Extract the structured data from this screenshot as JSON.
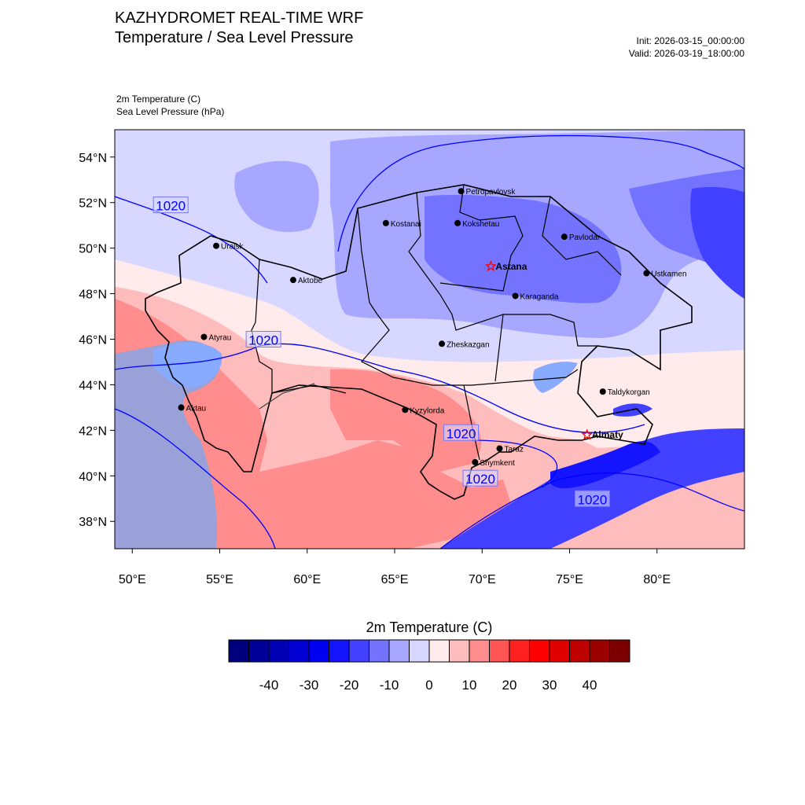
{
  "header": {
    "title": "KAZHYDROMET REAL-TIME WRF",
    "subtitle": "Temperature / Sea Level Pressure",
    "init": "Init: 2026-03-15_00:00:00",
    "valid": "Valid: 2026-03-19_18:00:00",
    "variable_1": "2m Temperature   (C)",
    "variable_2": "Sea Level Pressure   (hPa)"
  },
  "map": {
    "lon_range": [
      49,
      85
    ],
    "lat_range": [
      36.8,
      55.2
    ],
    "lat_ticks": [
      {
        "value": 54,
        "label": "54°N"
      },
      {
        "value": 52,
        "label": "52°N"
      },
      {
        "value": 50,
        "label": "50°N"
      },
      {
        "value": 48,
        "label": "48°N"
      },
      {
        "value": 46,
        "label": "46°N"
      },
      {
        "value": 44,
        "label": "44°N"
      },
      {
        "value": 42,
        "label": "42°N"
      },
      {
        "value": 40,
        "label": "40°N"
      },
      {
        "value": 38,
        "label": "38°N"
      }
    ],
    "lon_ticks": [
      {
        "value": 50,
        "label": "50°E"
      },
      {
        "value": 55,
        "label": "55°E"
      },
      {
        "value": 60,
        "label": "60°E"
      },
      {
        "value": 65,
        "label": "65°E"
      },
      {
        "value": 70,
        "label": "70°E"
      },
      {
        "value": 75,
        "label": "75°E"
      },
      {
        "value": 80,
        "label": "80°E"
      }
    ],
    "cities": [
      {
        "name": "Petropavlovsk",
        "lon": 68.8,
        "lat": 52.5,
        "marker": "dot",
        "bold": false
      },
      {
        "name": "Kostanai",
        "lon": 64.5,
        "lat": 51.1,
        "marker": "dot",
        "bold": false
      },
      {
        "name": "Kokshetau",
        "lon": 68.6,
        "lat": 51.1,
        "marker": "dot",
        "bold": false
      },
      {
        "name": "Uralsk",
        "lon": 54.8,
        "lat": 50.1,
        "marker": "dot",
        "bold": false
      },
      {
        "name": "Pavlodar",
        "lon": 74.7,
        "lat": 50.5,
        "marker": "dot",
        "bold": false
      },
      {
        "name": "Astana",
        "lon": 70.5,
        "lat": 49.2,
        "marker": "star",
        "bold": true
      },
      {
        "name": "Ustkamen",
        "lon": 79.4,
        "lat": 48.9,
        "marker": "dot",
        "bold": false
      },
      {
        "name": "Aktobe",
        "lon": 59.2,
        "lat": 48.6,
        "marker": "dot",
        "bold": false
      },
      {
        "name": "Karaganda",
        "lon": 71.9,
        "lat": 47.9,
        "marker": "dot",
        "bold": false
      },
      {
        "name": "Atyrau",
        "lon": 54.1,
        "lat": 46.1,
        "marker": "dot",
        "bold": false
      },
      {
        "name": "Zheskazgan",
        "lon": 67.7,
        "lat": 45.8,
        "marker": "dot",
        "bold": false
      },
      {
        "name": "Taldykorgan",
        "lon": 76.9,
        "lat": 43.7,
        "marker": "dot",
        "bold": false
      },
      {
        "name": "Aktau",
        "lon": 52.8,
        "lat": 43.0,
        "marker": "dot",
        "bold": false
      },
      {
        "name": "Kyzylorda",
        "lon": 65.6,
        "lat": 42.9,
        "marker": "dot",
        "bold": false
      },
      {
        "name": "Almaty",
        "lon": 76.0,
        "lat": 41.8,
        "marker": "star",
        "bold": true
      },
      {
        "name": "Taraz",
        "lon": 71.0,
        "lat": 41.2,
        "marker": "dot",
        "bold": false
      },
      {
        "name": "Shymkent",
        "lon": 69.6,
        "lat": 40.6,
        "marker": "dot",
        "bold": false
      }
    ],
    "isobar_labels": [
      {
        "text": "1020",
        "lon": 52.2,
        "lat": 51.9
      },
      {
        "text": "1020",
        "lon": 57.5,
        "lat": 46.0
      },
      {
        "text": "1020",
        "lon": 68.8,
        "lat": 41.9
      },
      {
        "text": "1020",
        "lon": 69.9,
        "lat": 39.9
      },
      {
        "text": "1020",
        "lon": 76.3,
        "lat": 39.0
      }
    ]
  },
  "colorbar": {
    "title": "2m Temperature  (C)",
    "colors": [
      "#00007d",
      "#000096",
      "#0000b4",
      "#0000d2",
      "#0000f0",
      "#1414ff",
      "#4141ff",
      "#7373ff",
      "#a7a7ff",
      "#d7d7ff",
      "#ffebeb",
      "#ffbcbc",
      "#ff8d8d",
      "#ff5555",
      "#ff2020",
      "#ff0000",
      "#e10000",
      "#be0000",
      "#9b0000",
      "#7d0000"
    ],
    "ticks": [
      "-40",
      "-30",
      "-20",
      "-10",
      "0",
      "10",
      "20",
      "30",
      "40"
    ]
  },
  "palette": {
    "cold1": "#d7d7ff",
    "cold2": "#a7a7ff",
    "cold3": "#7373ff",
    "cold4": "#4141ff",
    "cold5": "#1414ff",
    "warm1": "#ffebeb",
    "warm2": "#ffbcbc",
    "warm3": "#ff8d8d",
    "sea": "#88aaff",
    "isobar": "#0000ff",
    "border": "#000000",
    "star": "#ff0000"
  }
}
